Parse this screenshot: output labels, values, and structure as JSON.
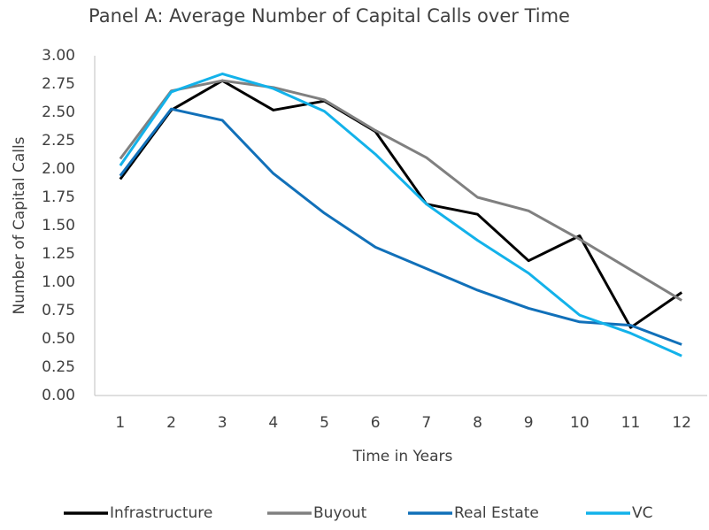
{
  "chart_data": {
    "type": "line",
    "title": "Panel A: Average Number of Capital Calls over Time",
    "x_label": "Time in Years",
    "y_label": "Number of Capital Calls",
    "categories": [
      "1",
      "2",
      "3",
      "4",
      "5",
      "6",
      "7",
      "8",
      "9",
      "10",
      "11",
      "12"
    ],
    "series": [
      {
        "name": "Infrastructure",
        "color": "#000000",
        "values": [
          1.91,
          2.52,
          2.78,
          2.52,
          2.6,
          2.33,
          1.69,
          1.6,
          1.19,
          1.41,
          0.6,
          0.91
        ]
      },
      {
        "name": "Buyout",
        "color": "#808080",
        "values": [
          2.09,
          2.69,
          2.78,
          2.72,
          2.61,
          2.34,
          2.1,
          1.75,
          1.63,
          1.38,
          1.11,
          0.84
        ]
      },
      {
        "name": "Real Estate",
        "color": "#1170b9",
        "values": [
          1.94,
          2.53,
          2.43,
          1.96,
          1.61,
          1.31,
          1.12,
          0.93,
          0.77,
          0.65,
          0.62,
          0.45
        ]
      },
      {
        "name": "VC",
        "color": "#13b2ea",
        "values": [
          2.03,
          2.68,
          2.84,
          2.71,
          2.51,
          2.13,
          1.69,
          1.37,
          1.08,
          0.71,
          0.55,
          0.35
        ]
      }
    ],
    "ylim": [
      0,
      3
    ],
    "yticks": [
      {
        "value": 0,
        "label": "0.00"
      },
      {
        "value": 0.25,
        "label": "0.25"
      },
      {
        "value": 0.5,
        "label": "0.50"
      },
      {
        "value": 0.75,
        "label": "0.75"
      },
      {
        "value": 1,
        "label": "1.00"
      },
      {
        "value": 1.25,
        "label": "1.25"
      },
      {
        "value": 1.5,
        "label": "1.50"
      },
      {
        "value": 1.75,
        "label": "1.75"
      },
      {
        "value": 2,
        "label": "2.00"
      },
      {
        "value": 2.25,
        "label": "2.25"
      },
      {
        "value": 2.5,
        "label": "2.50"
      },
      {
        "value": 2.75,
        "label": "2.75"
      },
      {
        "value": 3,
        "label": "3.00"
      }
    ],
    "grid": false,
    "legend": "bottom"
  }
}
